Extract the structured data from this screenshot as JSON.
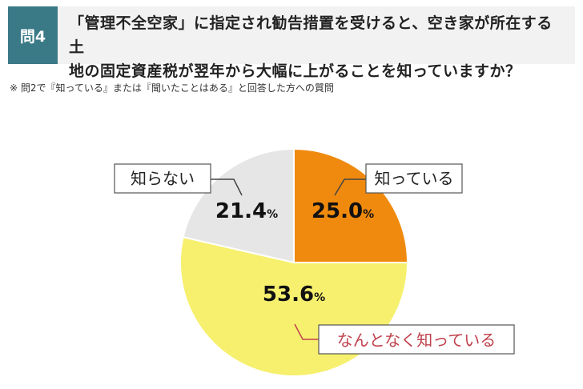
{
  "header": {
    "badge": "問4",
    "title_line1": "「管理不全空家」に指定され勧告措置を受けると、空き家が所在する土",
    "title_line2": "地の固定資産税が翌年から大幅に上がることを知っていますか？"
  },
  "note": "※ 問2で『知っている』または『聞いたことはある』と回答した方への質問",
  "colors": {
    "badge": "#3a7a87",
    "slice_know": "#f08a0e",
    "slice_somewhat": "#f6f06e",
    "slice_dont": "#e6e6e6",
    "accent_label": "#c0424e"
  },
  "chart_data": {
    "type": "pie",
    "categories": [
      "知っている",
      "なんとなく知っている",
      "知らない"
    ],
    "values": [
      25.0,
      53.6,
      21.4
    ],
    "value_labels": [
      "25.0",
      "53.6",
      "21.4"
    ],
    "unit": "%",
    "start": "12 o'clock",
    "direction": "clockwise"
  }
}
